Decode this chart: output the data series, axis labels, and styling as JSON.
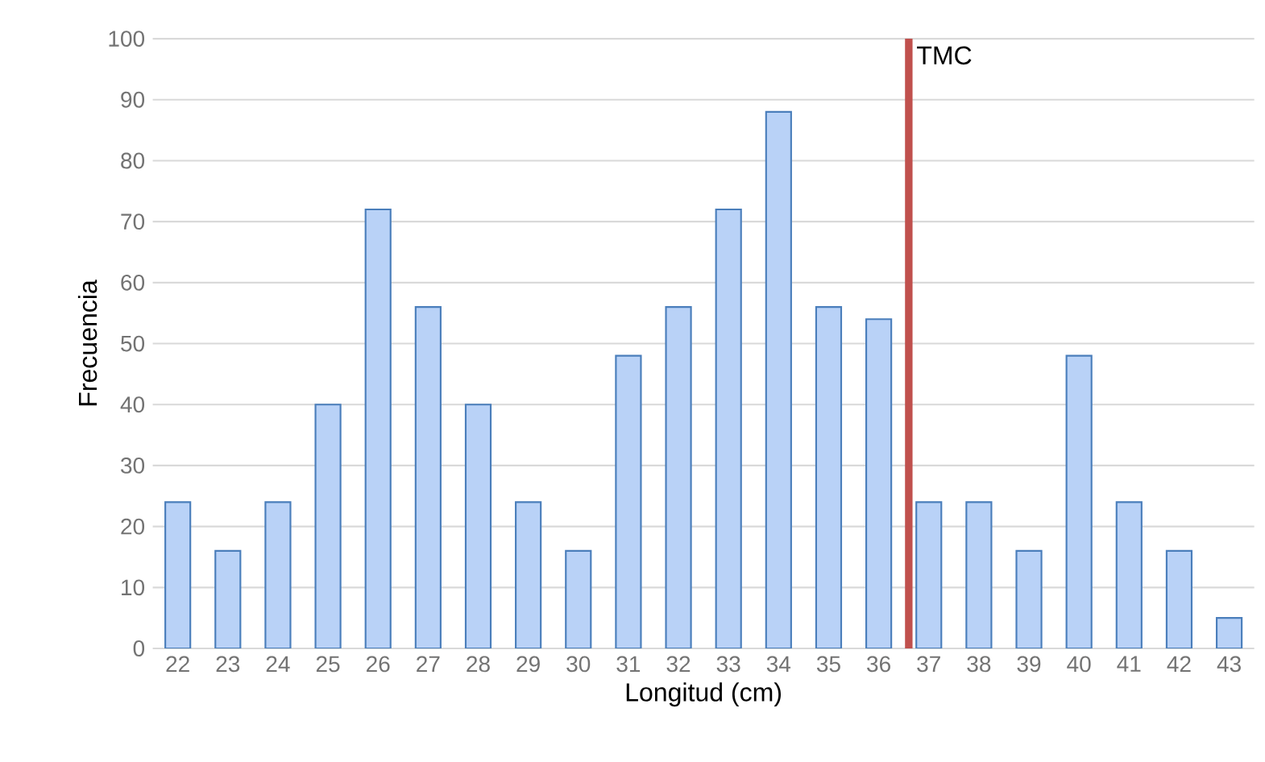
{
  "chart_data": {
    "type": "bar",
    "xlabel": "Longitud (cm)",
    "ylabel": "Frecuencia",
    "x": [
      22,
      23,
      24,
      25,
      26,
      27,
      28,
      29,
      30,
      31,
      32,
      33,
      34,
      35,
      36,
      37,
      38,
      39,
      40,
      41,
      42,
      43
    ],
    "values": [
      24,
      16,
      24,
      40,
      72,
      56,
      40,
      24,
      16,
      48,
      56,
      72,
      88,
      56,
      54,
      24,
      24,
      16,
      48,
      24,
      16,
      5
    ],
    "color": "#b9d2f7",
    "xlim": [
      21.5,
      43.5
    ],
    "xticks": [
      22,
      23,
      24,
      25,
      26,
      27,
      28,
      29,
      30,
      31,
      32,
      33,
      34,
      35,
      36,
      37,
      38,
      39,
      40,
      41,
      42,
      43
    ],
    "ylim": [
      0,
      100
    ],
    "yticks": [
      0,
      10,
      20,
      30,
      40,
      50,
      60,
      70,
      80,
      90,
      100
    ],
    "grid": "y",
    "ref_lines": [
      {
        "axis": "x",
        "value": 36.6,
        "label": "TMC",
        "color": "#c0504d"
      }
    ]
  }
}
